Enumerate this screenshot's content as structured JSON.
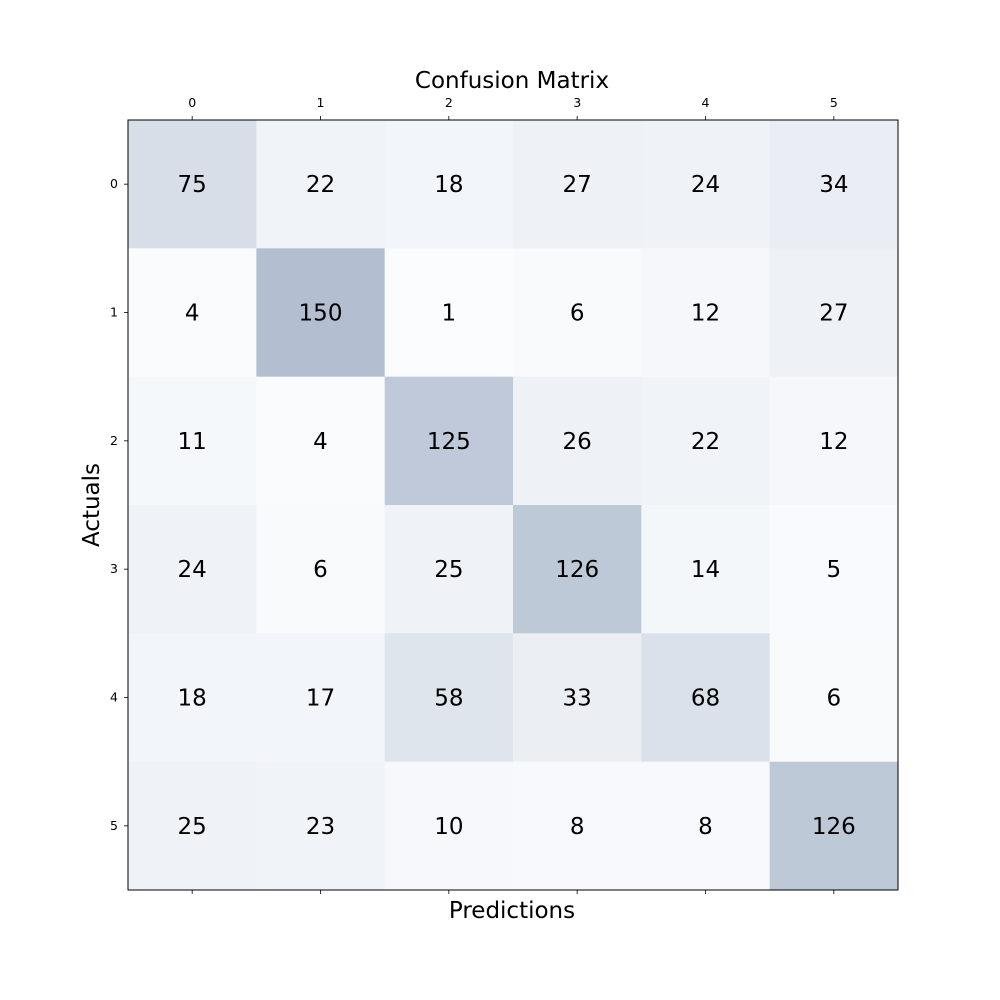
{
  "chart_data": {
    "type": "heatmap",
    "title": "Confusion Matrix",
    "xlabel": "Predictions",
    "ylabel": "Actuals",
    "x_categories": [
      "0",
      "1",
      "2",
      "3",
      "4",
      "5"
    ],
    "y_categories": [
      "0",
      "1",
      "2",
      "3",
      "4",
      "5"
    ],
    "values": [
      [
        75,
        22,
        18,
        27,
        24,
        34
      ],
      [
        4,
        150,
        1,
        6,
        12,
        27
      ],
      [
        11,
        4,
        125,
        26,
        22,
        12
      ],
      [
        24,
        6,
        25,
        126,
        14,
        5
      ],
      [
        18,
        17,
        58,
        33,
        68,
        6
      ],
      [
        25,
        23,
        10,
        8,
        8,
        126
      ]
    ],
    "x_ticks_position": "top",
    "grid": false,
    "colors": {
      "low": "#fafcfe",
      "high": "#b3bfd1",
      "text": "#000000"
    }
  }
}
